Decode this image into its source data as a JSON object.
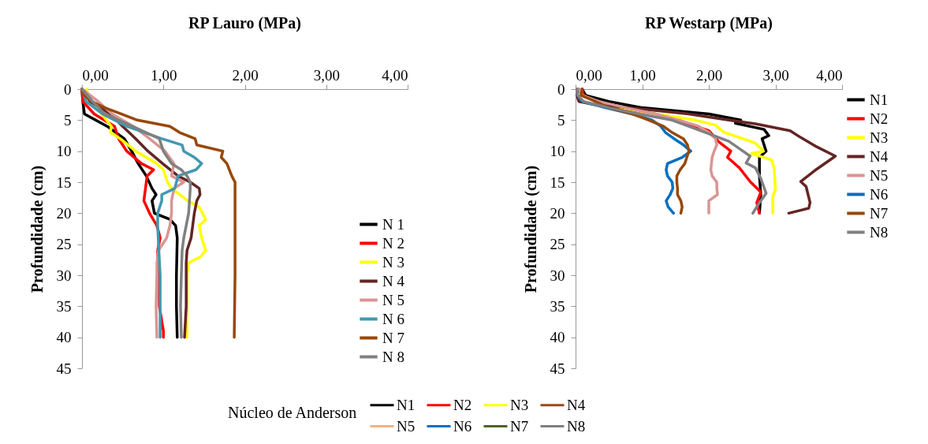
{
  "chart_data": [
    {
      "type": "line",
      "title": "RP Lauro (MPa)",
      "ylabel": "Profundidade (cm)",
      "xlim": [
        0,
        4
      ],
      "xticks": [
        {
          "value": 0,
          "label": "0,00"
        },
        {
          "value": 1,
          "label": "1,00"
        },
        {
          "value": 2,
          "label": "2,00"
        },
        {
          "value": 3,
          "label": "3,00"
        },
        {
          "value": 4,
          "label": "4,00"
        }
      ],
      "ylim": [
        45,
        0
      ],
      "yticks": [
        0,
        5,
        10,
        15,
        20,
        25,
        30,
        35,
        40,
        45
      ],
      "legend": "bottom right",
      "series": [
        {
          "name": "N 1",
          "color": "#000000",
          "x": [
            0,
            0.01,
            0.03,
            0.31,
            0.52,
            0.61,
            0.69,
            0.79,
            0.86,
            0.91,
            0.86,
            0.89,
            1.08,
            1.15,
            1.17,
            1.16,
            1.16,
            1.17
          ],
          "values": [
            0,
            2,
            4,
            6,
            8,
            10,
            12,
            14,
            16,
            17,
            18,
            20,
            21,
            22,
            24,
            30,
            35,
            40
          ]
        },
        {
          "name": "N 2",
          "color": "#ff0000",
          "x": [
            0,
            0.01,
            0.15,
            0.4,
            0.45,
            0.55,
            0.73,
            0.88,
            0.8,
            0.78,
            0.76,
            0.83,
            0.92,
            0.96,
            0.93,
            0.93,
            0.95,
            0.95,
            1.0,
            1.0
          ],
          "values": [
            0,
            2,
            4,
            6,
            8,
            10,
            12,
            13,
            14,
            16,
            18,
            20,
            22,
            24,
            26,
            28,
            30,
            35,
            39,
            40
          ]
        },
        {
          "name": "N 3",
          "color": "#ffff00",
          "x": [
            0.06,
            0.07,
            0.13,
            0.24,
            0.36,
            0.35,
            0.47,
            0.66,
            0.92,
            1.0,
            1.05,
            1.1,
            1.3,
            1.44,
            1.52,
            1.44,
            1.47,
            1.52,
            1.46,
            1.31,
            1.29,
            1.29,
            1.29
          ],
          "values": [
            0,
            1,
            2,
            4,
            6,
            7,
            8,
            10,
            12,
            13,
            15,
            16,
            18,
            19,
            21,
            22,
            24,
            26,
            27,
            28,
            30,
            35,
            40
          ]
        },
        {
          "name": "N 4",
          "color": "#632523",
          "x": [
            0,
            0.1,
            0.35,
            0.5,
            0.66,
            0.81,
            0.99,
            1.18,
            1.33,
            1.44,
            1.45,
            1.41,
            1.38,
            1.36,
            1.34,
            1.29,
            1.28,
            1.28,
            1.28,
            1.26
          ],
          "values": [
            0,
            2,
            4,
            6,
            8,
            10,
            12,
            14,
            15,
            16,
            17,
            18,
            20,
            22,
            24,
            26,
            28,
            30,
            35,
            40
          ]
        },
        {
          "name": "N 5",
          "color": "#d99594",
          "x": [
            0,
            0.2,
            0.37,
            0.63,
            0.83,
            1.02,
            1.13,
            1.1,
            1.25,
            1.13,
            1.1,
            1.1,
            1.08,
            1.04,
            0.94,
            0.92,
            0.92,
            0.91,
            0.92
          ],
          "values": [
            0,
            2,
            4,
            6,
            8,
            10,
            12,
            14,
            15,
            16,
            18,
            20,
            22,
            24,
            26,
            28,
            30,
            35,
            40
          ]
        },
        {
          "name": "N 6",
          "color": "#4198b0",
          "x": [
            0,
            0.05,
            0.25,
            0.55,
            0.98,
            1.23,
            1.25,
            1.38,
            1.47,
            1.4,
            1.18,
            1.14,
            0.98,
            0.98,
            0.93,
            0.93,
            0.94,
            0.96,
            0.96,
            0.96
          ],
          "values": [
            0,
            2,
            4,
            6,
            8,
            9,
            10,
            11,
            12,
            13,
            14,
            16,
            17,
            18,
            20,
            22,
            25,
            30,
            35,
            40
          ]
        },
        {
          "name": "N 7",
          "color": "#984807",
          "x": [
            0,
            0.03,
            0.12,
            0.28,
            0.48,
            0.68,
            1.08,
            1.2,
            1.39,
            1.41,
            1.73,
            1.71,
            1.78,
            1.84,
            1.88,
            1.88,
            1.88,
            1.87
          ],
          "values": [
            0,
            1,
            2,
            3,
            4,
            5,
            6,
            7,
            8,
            9,
            10,
            11,
            12,
            14,
            15,
            20,
            30,
            40
          ]
        },
        {
          "name": "N 8",
          "color": "#808080",
          "x": [
            0,
            0.13,
            0.28,
            0.62,
            0.95,
            1.0,
            1.1,
            1.22,
            1.29,
            1.33,
            1.33,
            1.32,
            1.31,
            1.28,
            1.25,
            1.23,
            1.22,
            1.21,
            1.22
          ],
          "values": [
            0,
            2,
            4,
            6,
            8,
            10,
            12,
            13,
            14,
            15,
            16,
            18,
            20,
            22,
            24,
            26,
            30,
            35,
            40
          ]
        }
      ]
    },
    {
      "type": "line",
      "title": "RP Westarp (MPa)",
      "ylabel": "Profundidade (cm)",
      "xlim": [
        0,
        4
      ],
      "xticks": [
        {
          "value": 0,
          "label": "0,00"
        },
        {
          "value": 1,
          "label": "1,00"
        },
        {
          "value": 2,
          "label": "2,00"
        },
        {
          "value": 3,
          "label": "3,00"
        },
        {
          "value": 4,
          "label": "4,00"
        }
      ],
      "ylim": [
        45,
        0
      ],
      "yticks": [
        0,
        5,
        10,
        15,
        20,
        25,
        30,
        35,
        40,
        45
      ],
      "legend": "right",
      "series": [
        {
          "name": "N1",
          "color": "#000000",
          "x": [
            0.1,
            0.15,
            0.5,
            1.0,
            2.0,
            2.48,
            2.4,
            2.83,
            2.9,
            2.8,
            2.86,
            2.76,
            2.76,
            2.78,
            2.76
          ],
          "values": [
            0,
            1,
            2,
            3,
            4,
            5,
            5.5,
            6.5,
            7.5,
            8,
            10,
            11,
            14,
            17,
            20
          ]
        },
        {
          "name": "N2",
          "color": "#ff0000",
          "x": [
            0.1,
            0.12,
            0.3,
            0.65,
            1.2,
            1.55,
            1.75,
            2.0,
            2.15,
            2.33,
            2.28,
            2.46,
            2.62,
            2.78,
            2.72,
            2.76
          ],
          "values": [
            0,
            1,
            2,
            3,
            4,
            5,
            5.8,
            6.7,
            8.5,
            10,
            11,
            12.7,
            14.9,
            16.6,
            18.3,
            20
          ]
        },
        {
          "name": "N3",
          "color": "#ffff00",
          "x": [
            0.3,
            0.7,
            1.2,
            1.8,
            2.1,
            2.22,
            2.7,
            2.82,
            2.64,
            2.94,
            2.98,
            3.0,
            2.96,
            2.96
          ],
          "values": [
            2,
            3,
            4,
            5,
            5.8,
            6.9,
            8.7,
            10,
            10.4,
            11.4,
            12.7,
            16.1,
            17.4,
            20
          ]
        },
        {
          "name": "N4",
          "color": "#632523",
          "x": [
            0.05,
            0.02,
            0.05,
            0.3,
            0.8,
            1.7,
            2.3,
            2.7,
            3.22,
            3.38,
            3.62,
            3.9,
            3.62,
            3.38,
            3.46,
            3.52,
            3.5,
            3.2
          ],
          "values": [
            0,
            1,
            2,
            2.5,
            3,
            4,
            5,
            5.6,
            6.7,
            7.8,
            9.3,
            10.8,
            12.9,
            14.9,
            15.7,
            18.3,
            19.2,
            20
          ]
        },
        {
          "name": "N5",
          "color": "#d99594",
          "x": [
            0.05,
            0.1,
            0.35,
            0.75,
            1.2,
            1.55,
            1.85,
            2.0,
            2.1,
            2.12,
            2.08,
            2.05,
            2.03,
            2.05,
            2.12,
            2.12,
            2.13,
            2.0,
            2.0,
            2.0
          ],
          "values": [
            0,
            1,
            2,
            3,
            4,
            5,
            6,
            7,
            8,
            9,
            10,
            11,
            13,
            14,
            15,
            16,
            17,
            18,
            19,
            20
          ]
        },
        {
          "name": "N6",
          "color": "#0070c0",
          "x": [
            0.02,
            0.03,
            0.1,
            0.45,
            0.85,
            1.15,
            1.28,
            1.35,
            1.48,
            1.62,
            1.73,
            1.6,
            1.38,
            1.36,
            1.38,
            1.45,
            1.46,
            1.42,
            1.36,
            1.39,
            1.47
          ],
          "values": [
            0,
            1,
            2,
            3,
            4,
            5,
            6,
            7,
            8,
            9,
            10,
            11,
            12,
            13,
            14,
            15,
            16,
            17,
            18,
            19,
            20
          ]
        },
        {
          "name": "N7",
          "color": "#984807",
          "x": [
            0.1,
            0.08,
            0.3,
            0.5,
            0.85,
            1.1,
            1.32,
            1.45,
            1.62,
            1.68,
            1.7,
            1.67,
            1.64,
            1.57,
            1.52,
            1.52,
            1.53,
            1.53,
            1.58,
            1.6,
            1.58
          ],
          "values": [
            0,
            1,
            2,
            3,
            4,
            5,
            6,
            7,
            8,
            9,
            10,
            11,
            12,
            13,
            14,
            15,
            16,
            17,
            18,
            19,
            20
          ]
        },
        {
          "name": "N8",
          "color": "#808080",
          "x": [
            0.02,
            0.03,
            0.12,
            0.5,
            0.95,
            1.45,
            1.93,
            2.3,
            2.5,
            2.62,
            2.56,
            2.7,
            2.78,
            2.86,
            2.76,
            2.66
          ],
          "values": [
            0,
            1,
            2,
            3,
            4,
            5,
            6.9,
            8.4,
            9.9,
            10.8,
            11.9,
            12.7,
            14.4,
            16.8,
            18.3,
            20
          ]
        }
      ]
    },
    {
      "type": "other",
      "legend_title": "Núcleo de Anderson",
      "legend": "bottom",
      "series": [
        {
          "name": "N1",
          "color": "#000000"
        },
        {
          "name": "N2",
          "color": "#ff0000"
        },
        {
          "name": "N3",
          "color": "#ffff00"
        },
        {
          "name": "N4",
          "color": "#9b4a1a"
        },
        {
          "name": "N5",
          "color": "#f4b183"
        },
        {
          "name": "N6",
          "color": "#0070c0"
        },
        {
          "name": "N7",
          "color": "#4f6228"
        },
        {
          "name": "N8",
          "color": "#808080"
        }
      ]
    }
  ]
}
